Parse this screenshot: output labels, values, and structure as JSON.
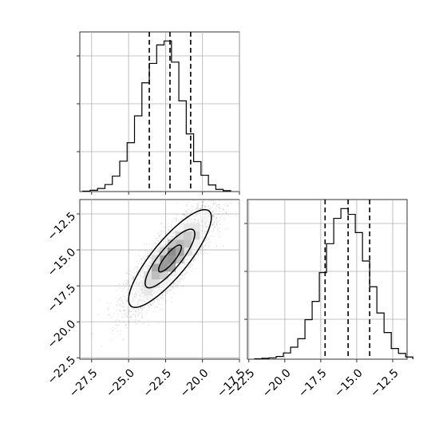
{
  "chart_data": [
    {
      "type": "histogram",
      "panel": "top-left",
      "x": [
        -28.1,
        -27.6,
        -27.1,
        -26.6,
        -26.1,
        -25.6,
        -25.1,
        -24.6,
        -24.1,
        -23.6,
        -23.1,
        -22.6,
        -22.1,
        -21.6,
        -21.1,
        -20.6,
        -20.1,
        -19.6,
        -19.1,
        -18.6
      ],
      "values": [
        1,
        3,
        7,
        16,
        35,
        69,
        111,
        172,
        247,
        291,
        333,
        342,
        294,
        206,
        131,
        68,
        37,
        15,
        5,
        2
      ],
      "quantile_lines": [
        -23.6,
        -22.2,
        -20.8
      ],
      "xlim": [
        -28.3,
        -17.5
      ],
      "grid": true,
      "line_style": "step",
      "quantile_line_style": "dashed"
    },
    {
      "type": "histogram",
      "panel": "bottom-right",
      "x": [
        -22.1,
        -21.6,
        -21.1,
        -20.6,
        -20.1,
        -19.6,
        -19.1,
        -18.6,
        -18.1,
        -17.6,
        -17.1,
        -16.6,
        -16.1,
        -15.6,
        -15.1,
        -14.6,
        -14.1,
        -13.6,
        -13.1,
        -12.6,
        -12.1,
        -11.6
      ],
      "values": [
        1,
        2,
        3,
        6,
        14,
        27,
        46,
        89,
        130,
        195,
        260,
        317,
        339,
        326,
        285,
        221,
        163,
        104,
        60,
        24,
        13,
        5
      ],
      "quantile_lines": [
        -17.2,
        -15.6,
        -14.1
      ],
      "xlim": [
        -22.6,
        -11.5
      ],
      "x_ticks": [
        "−22.5",
        "−20.0",
        "−17.5",
        "−15.0",
        "−12.5"
      ],
      "grid": true,
      "line_style": "step",
      "quantile_line_style": "dashed"
    },
    {
      "type": "scatter",
      "panel": "bottom-left",
      "center": [
        -22.2,
        -15.6
      ],
      "std": [
        1.4,
        1.7
      ],
      "correlation": 0.84,
      "n_points": 5000,
      "contour_levels": 3,
      "xlim": [
        -28.3,
        -17.5
      ],
      "ylim": [
        -22.6,
        -11.5
      ],
      "x_ticks": [
        "−27.5",
        "−25.0",
        "−22.5",
        "−20.0",
        "−17.5"
      ],
      "y_ticks": [
        "−12.5",
        "−15.0",
        "−17.5",
        "−20.0",
        "−22.5"
      ],
      "grid": true
    }
  ]
}
